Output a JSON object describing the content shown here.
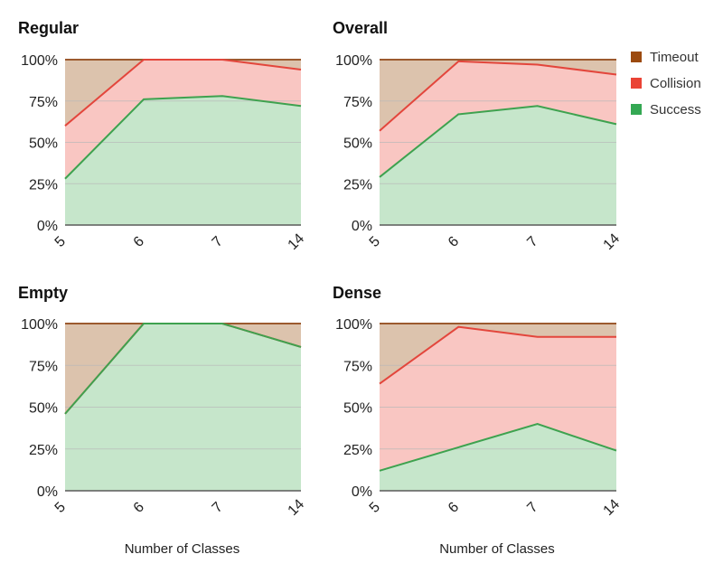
{
  "colors": {
    "timeout_fill": "#dcc3ad",
    "timeout_line": "#9c5a2e",
    "collision_fill": "#f9c6c2",
    "collision_line": "#e3463c",
    "success_fill": "#c6e6cb",
    "success_line": "#3ea24f",
    "grid": "#b8b8b8",
    "axis": "#5a5a5a",
    "legend_timeout": "#9c4a0f",
    "legend_collision": "#ea4335",
    "legend_success": "#34a853"
  },
  "legend": {
    "items": [
      {
        "label": "Timeout",
        "color_key": "legend_timeout"
      },
      {
        "label": "Collision",
        "color_key": "legend_collision"
      },
      {
        "label": "Success",
        "color_key": "legend_success"
      }
    ]
  },
  "chart_data": [
    {
      "type": "area",
      "title": "Regular",
      "categories": [
        "5",
        "6",
        "7",
        "14"
      ],
      "xlabel": "",
      "ylabel": "",
      "yticks": [
        "0%",
        "25%",
        "50%",
        "75%",
        "100%"
      ],
      "ylim": [
        0,
        100
      ],
      "stacked": true,
      "series": [
        {
          "name": "Success",
          "values": [
            28,
            76,
            78,
            72
          ]
        },
        {
          "name": "Collision",
          "values": [
            32,
            24,
            22,
            22
          ]
        },
        {
          "name": "Timeout",
          "values": [
            40,
            0,
            0,
            6
          ]
        }
      ]
    },
    {
      "type": "area",
      "title": "Overall",
      "categories": [
        "5",
        "6",
        "7",
        "14"
      ],
      "xlabel": "",
      "ylabel": "",
      "yticks": [
        "0%",
        "25%",
        "50%",
        "75%",
        "100%"
      ],
      "ylim": [
        0,
        100
      ],
      "stacked": true,
      "series": [
        {
          "name": "Success",
          "values": [
            29,
            67,
            72,
            61
          ]
        },
        {
          "name": "Collision",
          "values": [
            28,
            32,
            25,
            30
          ]
        },
        {
          "name": "Timeout",
          "values": [
            43,
            1,
            3,
            9
          ]
        }
      ]
    },
    {
      "type": "area",
      "title": "Empty",
      "categories": [
        "5",
        "6",
        "7",
        "14"
      ],
      "xlabel": "Number of Classes",
      "ylabel": "",
      "yticks": [
        "0%",
        "25%",
        "50%",
        "75%",
        "100%"
      ],
      "ylim": [
        0,
        100
      ],
      "stacked": true,
      "series": [
        {
          "name": "Success",
          "values": [
            46,
            100,
            100,
            86
          ]
        },
        {
          "name": "Collision",
          "values": [
            0,
            0,
            0,
            0
          ]
        },
        {
          "name": "Timeout",
          "values": [
            54,
            0,
            0,
            14
          ]
        }
      ]
    },
    {
      "type": "area",
      "title": "Dense",
      "categories": [
        "5",
        "6",
        "7",
        "14"
      ],
      "xlabel": "Number of Classes",
      "ylabel": "",
      "yticks": [
        "0%",
        "25%",
        "50%",
        "75%",
        "100%"
      ],
      "ylim": [
        0,
        100
      ],
      "stacked": true,
      "series": [
        {
          "name": "Success",
          "values": [
            12,
            26,
            40,
            24
          ]
        },
        {
          "name": "Collision",
          "values": [
            52,
            72,
            52,
            68
          ]
        },
        {
          "name": "Timeout",
          "values": [
            36,
            2,
            8,
            8
          ]
        }
      ]
    }
  ]
}
